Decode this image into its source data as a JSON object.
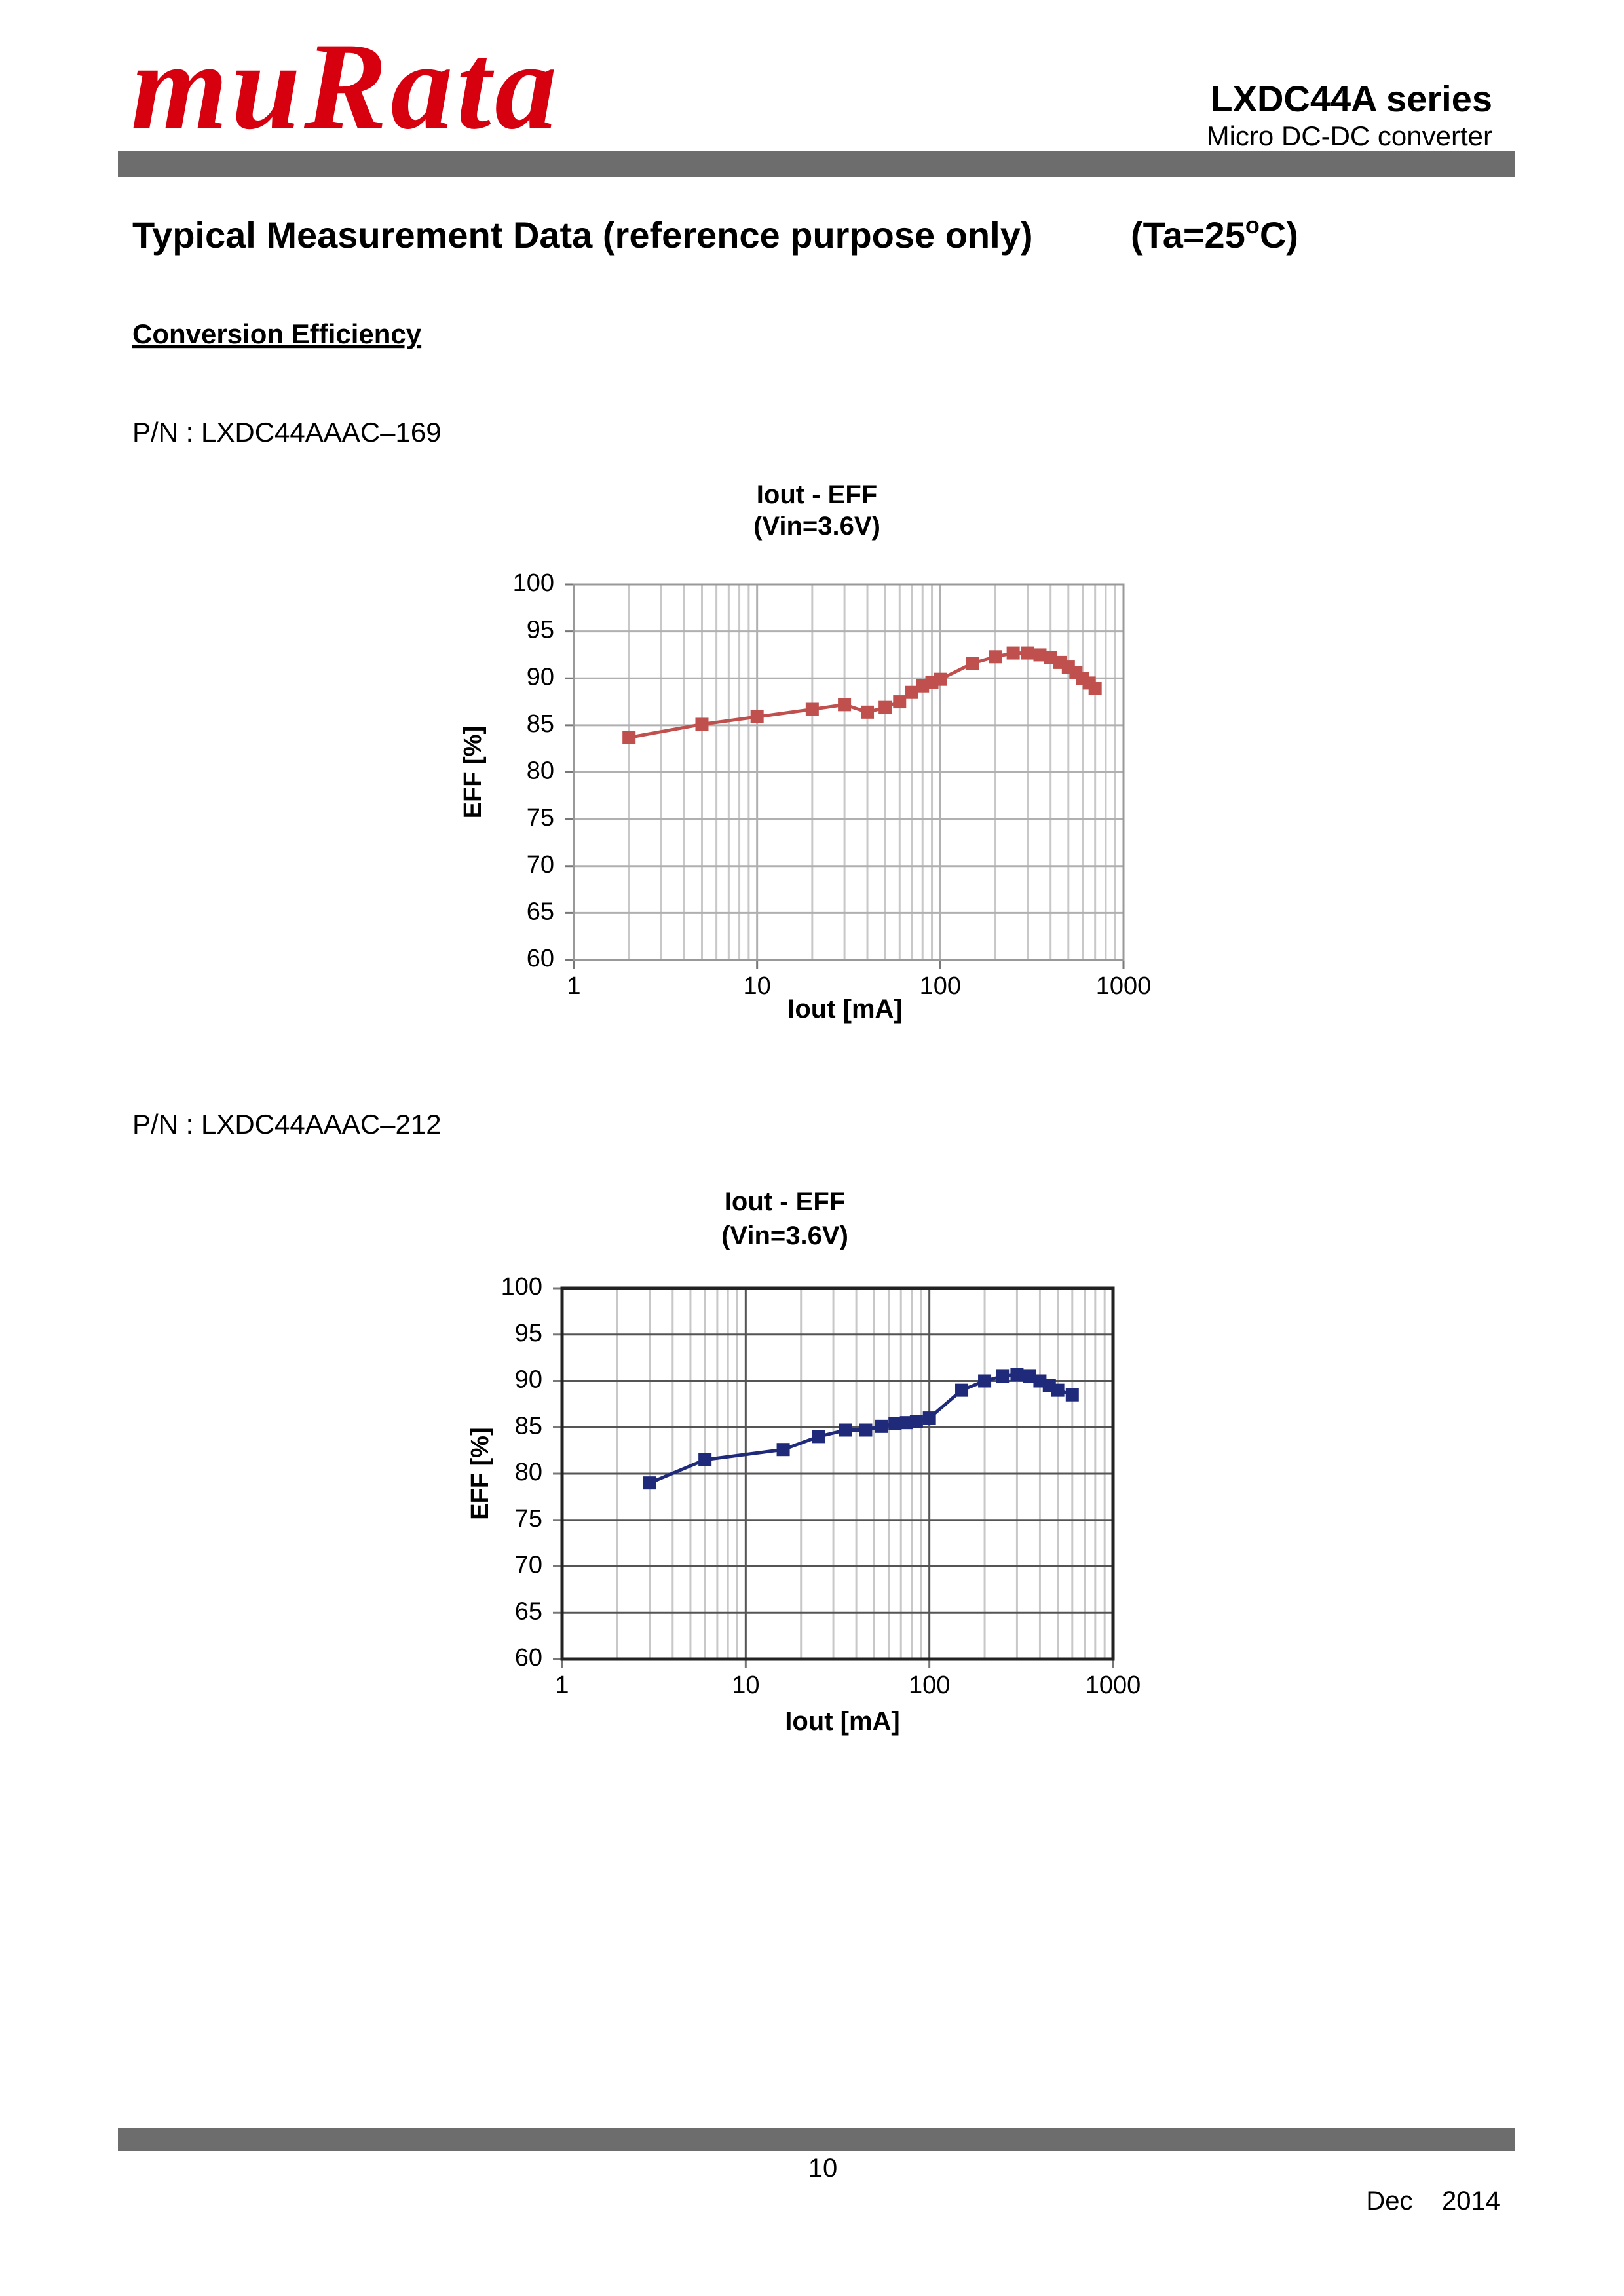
{
  "header": {
    "logo": "muRata",
    "series": "LXDC44A  series",
    "subtitle": "Micro DC-DC converter"
  },
  "title": "Typical Measurement Data (reference purpose only)",
  "condition": {
    "prefix": "(Ta=25",
    "superscript": "o",
    "suffix": "C)"
  },
  "section": "Conversion Efficiency",
  "part_numbers": [
    "P/N : LXDC44AAAC–169",
    "P/N : LXDC44AAAC–212"
  ],
  "chart_data": [
    {
      "type": "line",
      "title": "Iout - EFF",
      "subtitle": "(Vin=3.6V)",
      "x_label": "Iout [mA]",
      "y_label": "EFF [%]",
      "x_scale": "log",
      "grid": true,
      "color": "#c0504d",
      "marker": "square",
      "xlim": [
        1,
        1000
      ],
      "xticks": [
        1,
        10,
        100,
        1000
      ],
      "ylim": [
        60,
        100
      ],
      "yticks": [
        60,
        65,
        70,
        75,
        80,
        85,
        90,
        95,
        100
      ],
      "x": [
        2,
        5,
        10,
        20,
        30,
        40,
        50,
        60,
        70,
        80,
        90,
        100,
        150,
        200,
        250,
        300,
        350,
        400,
        450,
        500,
        550,
        600,
        650,
        700
      ],
      "values": [
        83.7,
        85.1,
        85.9,
        86.7,
        87.2,
        86.4,
        86.9,
        87.5,
        88.5,
        89.2,
        89.6,
        89.9,
        91.6,
        92.3,
        92.7,
        92.7,
        92.5,
        92.2,
        91.7,
        91.2,
        90.6,
        90.0,
        89.5,
        88.9
      ]
    },
    {
      "type": "line",
      "title": "Iout - EFF",
      "subtitle": "(Vin=3.6V)",
      "x_label": "Iout [mA]",
      "y_label": "EFF [%]",
      "x_scale": "log",
      "grid": true,
      "color": "#1f2a7a",
      "marker": "square",
      "xlim": [
        1,
        1000
      ],
      "xticks": [
        1,
        10,
        100,
        1000
      ],
      "ylim": [
        60,
        100
      ],
      "yticks": [
        60,
        65,
        70,
        75,
        80,
        85,
        90,
        95,
        100
      ],
      "x": [
        3,
        6,
        16,
        25,
        35,
        45,
        55,
        65,
        75,
        85,
        100,
        150,
        200,
        250,
        300,
        350,
        400,
        450,
        500,
        600
      ],
      "values": [
        79.0,
        81.5,
        82.6,
        84.0,
        84.7,
        84.7,
        85.1,
        85.4,
        85.5,
        85.6,
        86.0,
        89.0,
        90.0,
        90.5,
        90.7,
        90.5,
        90.0,
        89.5,
        89.0,
        88.5
      ]
    }
  ],
  "footer": {
    "page": "10",
    "date": "Dec    2014"
  }
}
